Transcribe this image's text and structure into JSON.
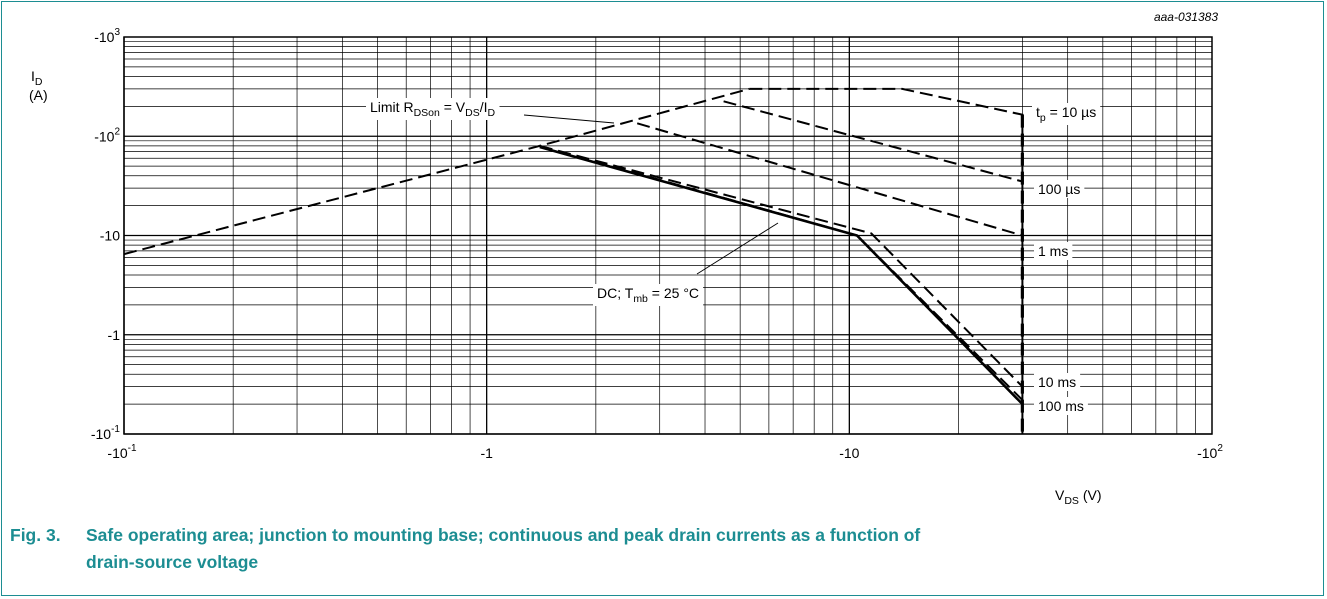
{
  "doc_id": "aaa-031383",
  "chart_data": {
    "type": "line",
    "title": "",
    "xscale": "log",
    "yscale": "log",
    "xlim": [
      -0.1,
      -100
    ],
    "ylim": [
      -0.1,
      -1000
    ],
    "grid": true,
    "xlabel": {
      "main": "V",
      "sub": "DS",
      "unit": " (V)"
    },
    "ylabel": {
      "main": "I",
      "sub": "D",
      "unit": "(A)"
    },
    "x_ticks": [
      {
        "value": -0.1,
        "base": "-10",
        "sup": "-1"
      },
      {
        "value": -1,
        "base": "-1",
        "sup": ""
      },
      {
        "value": -10,
        "base": "-10",
        "sup": ""
      },
      {
        "value": -100,
        "base": "-10",
        "sup": "2"
      }
    ],
    "y_ticks": [
      {
        "value": -1000,
        "base": "-10",
        "sup": "3"
      },
      {
        "value": -100,
        "base": "-10",
        "sup": "2"
      },
      {
        "value": -10,
        "base": "-10",
        "sup": ""
      },
      {
        "value": -1,
        "base": "-1",
        "sup": ""
      },
      {
        "value": -0.1,
        "base": "-10",
        "sup": "-1"
      }
    ],
    "series": [
      {
        "name": "Limit RDSon = VDS/ID",
        "style": "dashed",
        "x": [
          -0.1,
          -1.4,
          -5.3
        ],
        "y": [
          -6.5,
          -80,
          -300
        ]
      },
      {
        "name": "tp = 10 µs",
        "style": "dashed",
        "x": [
          -5.3,
          -14,
          -30,
          -30
        ],
        "y": [
          -300,
          -300,
          -165,
          -0.1
        ]
      },
      {
        "name": "100 µs",
        "style": "dashed",
        "x": [
          -4.5,
          -30
        ],
        "y": [
          -225,
          -35
        ]
      },
      {
        "name": "1 ms",
        "style": "dashed",
        "x": [
          -2.6,
          -30
        ],
        "y": [
          -135,
          -10
        ]
      },
      {
        "name": "10 ms",
        "style": "dashed",
        "x": [
          -1.4,
          -11.5,
          -30
        ],
        "y": [
          -80,
          -10.5,
          -0.3
        ]
      },
      {
        "name": "100 ms",
        "style": "dashed",
        "x": [
          -1.4,
          -10.5,
          -30
        ],
        "y": [
          -80,
          -10,
          -0.22
        ]
      },
      {
        "name": "DC; Tmb = 25 °C",
        "style": "solid",
        "x": [
          -1.4,
          -10.5,
          -30
        ],
        "y": [
          -78,
          -10,
          -0.2
        ]
      }
    ],
    "annotations": [
      {
        "id": "limit",
        "parts": [
          {
            "t": "Limit R",
            "s": ""
          },
          {
            "t": "DSon",
            "s": "sub"
          },
          {
            "t": " = V",
            "s": ""
          },
          {
            "t": "DS",
            "s": "sub"
          },
          {
            "t": "/I",
            "s": ""
          },
          {
            "t": "D",
            "s": "sub"
          }
        ]
      },
      {
        "id": "tp10",
        "parts": [
          {
            "t": "t",
            "s": ""
          },
          {
            "t": "p",
            "s": "sub"
          },
          {
            "t": " = 10 µs",
            "s": ""
          }
        ]
      },
      {
        "id": "us100",
        "parts": [
          {
            "t": "100 µs",
            "s": ""
          }
        ]
      },
      {
        "id": "ms1",
        "parts": [
          {
            "t": "1 ms",
            "s": ""
          }
        ]
      },
      {
        "id": "ms10",
        "parts": [
          {
            "t": "10 ms",
            "s": ""
          }
        ]
      },
      {
        "id": "ms100",
        "parts": [
          {
            "t": "100 ms",
            "s": ""
          }
        ]
      },
      {
        "id": "dc",
        "parts": [
          {
            "t": "DC; T",
            "s": ""
          },
          {
            "t": "mb",
            "s": "sub"
          },
          {
            "t": " = 25 °C",
            "s": ""
          }
        ]
      }
    ]
  },
  "caption": {
    "number": "Fig. 3.",
    "line1": "Safe operating area; junction to mounting base; continuous and peak drain currents as a function of",
    "line2": "drain-source voltage"
  }
}
